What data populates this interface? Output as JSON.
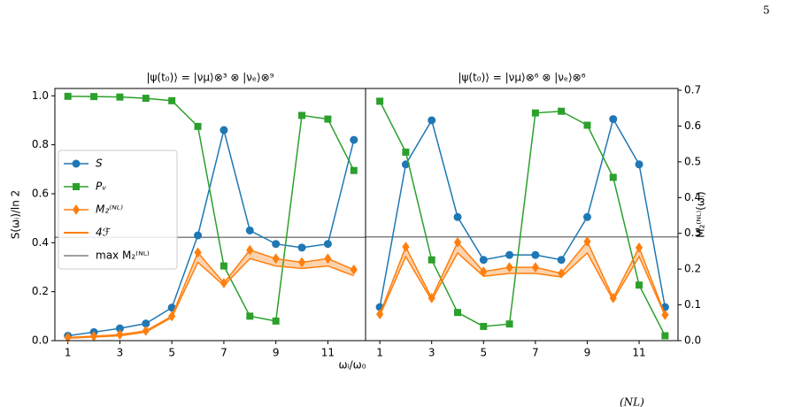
{
  "page_number": "5",
  "caption_fragment": "(NL)",
  "chart_data": [
    {
      "type": "line",
      "title": "|ψ(t₀)⟩ = |νμ⟩⊗³ ⊗ |νₑ⟩⊗⁹",
      "ylabel": "S(ωᵢ)/ln 2",
      "xlabel": "ωᵢ/ω₀",
      "x": [
        1,
        2,
        3,
        4,
        5,
        6,
        7,
        8,
        9,
        10,
        11,
        12
      ],
      "xlim": [
        0.5,
        12.45
      ],
      "xticks": [
        1,
        3,
        5,
        7,
        9,
        11
      ],
      "ylim": [
        0,
        1.03
      ],
      "yticks": [
        {
          "value": 0,
          "label": "0.0"
        },
        {
          "value": 0.2,
          "label": "0.2"
        },
        {
          "value": 0.4,
          "label": "0.4"
        },
        {
          "value": 0.6,
          "label": "0.6"
        },
        {
          "value": 0.8,
          "label": "0.8"
        },
        {
          "value": 1.0,
          "label": "1.0"
        }
      ],
      "legend": "center left",
      "series": [
        {
          "name": "S",
          "color": "#1f77b4",
          "marker": "circle",
          "values": [
            0.02,
            0.035,
            0.05,
            0.07,
            0.135,
            0.43,
            0.86,
            0.45,
            0.395,
            0.38,
            0.395,
            0.82
          ]
        },
        {
          "name": "Pᵥ",
          "color": "#2ca02c",
          "marker": "square",
          "values": [
            0.998,
            0.997,
            0.995,
            0.99,
            0.98,
            0.875,
            0.305,
            0.1,
            0.08,
            0.92,
            0.905,
            0.695
          ]
        },
        {
          "name": "M₂⁽ᴺᴸ⁾",
          "color": "#ff7f0e",
          "marker": "diamond",
          "values": [
            0.013,
            0.018,
            0.025,
            0.04,
            0.1,
            0.36,
            0.235,
            0.37,
            0.335,
            0.32,
            0.335,
            0.29
          ]
        },
        {
          "name": "4ℱ",
          "color": "#ff7f0e",
          "fill": "#fcd3ad",
          "values": [
            0.01,
            0.015,
            0.02,
            0.035,
            0.095,
            0.32,
            0.225,
            0.335,
            0.305,
            0.295,
            0.305,
            0.265
          ]
        }
      ],
      "hline": {
        "name": "max M₂⁽ᴺᴸ⁾",
        "value": 0.422,
        "color": "#808080"
      }
    },
    {
      "type": "line",
      "title": "|ψ(t₀)⟩ = |νμ⟩⊗⁶ ⊗ |νₑ⟩⊗⁶",
      "y2label": "M₂⁽ᴺᴸ⁾(ωᵢ)",
      "x": [
        1,
        2,
        3,
        4,
        5,
        6,
        7,
        8,
        9,
        10,
        11,
        12
      ],
      "xlim": [
        0.45,
        12.5
      ],
      "xticks": [
        1,
        3,
        5,
        7,
        9,
        11
      ],
      "ylim": [
        0,
        1.03
      ],
      "y2lim": [
        0,
        0.705
      ],
      "y2ticks": [
        {
          "value": 0,
          "label": "0.0"
        },
        {
          "value": 0.1,
          "label": "0.1"
        },
        {
          "value": 0.2,
          "label": "0.2"
        },
        {
          "value": 0.3,
          "label": "0.3"
        },
        {
          "value": 0.4,
          "label": "0.4"
        },
        {
          "value": 0.5,
          "label": "0.5"
        },
        {
          "value": 0.6,
          "label": "0.6"
        },
        {
          "value": 0.7,
          "label": "0.7"
        }
      ],
      "series": [
        {
          "color": "#1f77b4",
          "marker": "circle",
          "values": [
            0.137,
            0.72,
            0.9,
            0.505,
            0.33,
            0.35,
            0.35,
            0.33,
            0.505,
            0.905,
            0.72,
            0.137
          ]
        },
        {
          "color": "#2ca02c",
          "marker": "square",
          "values": [
            0.978,
            0.77,
            0.33,
            0.115,
            0.058,
            0.068,
            0.93,
            0.937,
            0.88,
            0.667,
            0.227,
            0.02
          ]
        },
        {
          "color": "#ff7f0e",
          "marker": "diamond",
          "axis": "y2",
          "values": [
            0.074,
            0.262,
            0.119,
            0.275,
            0.193,
            0.205,
            0.205,
            0.188,
            0.277,
            0.119,
            0.26,
            0.072
          ]
        },
        {
          "color": "#ff7f0e",
          "fill": "#fcd3ad",
          "axis": "y2",
          "values": [
            0.07,
            0.235,
            0.113,
            0.245,
            0.18,
            0.188,
            0.188,
            0.178,
            0.245,
            0.113,
            0.235,
            0.07
          ]
        }
      ],
      "hline": {
        "value": 0.29,
        "axis": "y2",
        "color": "#808080"
      }
    }
  ]
}
